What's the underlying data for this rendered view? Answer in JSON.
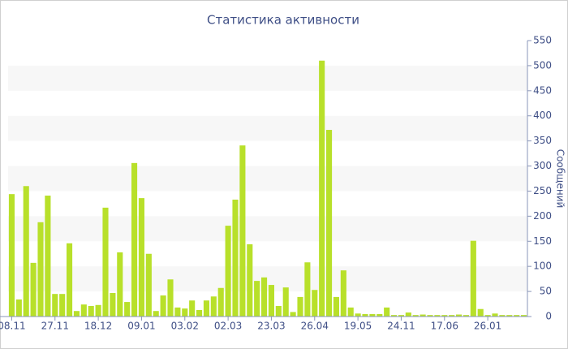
{
  "chart_data": {
    "type": "bar",
    "title": "Статистика активности",
    "y_label": "Сообщений",
    "categories": [
      "08.11",
      null,
      null,
      null,
      null,
      null,
      "27.11",
      null,
      null,
      null,
      null,
      null,
      "18.12",
      null,
      null,
      null,
      null,
      null,
      "09.01",
      null,
      null,
      null,
      null,
      null,
      "03.02",
      null,
      null,
      null,
      null,
      null,
      "02.03",
      null,
      null,
      null,
      null,
      null,
      "23.03",
      null,
      null,
      null,
      null,
      null,
      "26.04",
      null,
      null,
      null,
      null,
      null,
      "19.05",
      null,
      null,
      null,
      null,
      null,
      "24.11",
      null,
      null,
      null,
      null,
      null,
      "17.06",
      null,
      null,
      null,
      null,
      null,
      "26.01",
      null,
      null,
      null,
      null,
      null
    ],
    "values": [
      244,
      34,
      260,
      107,
      188,
      241,
      45,
      45,
      146,
      11,
      24,
      21,
      23,
      217,
      47,
      128,
      29,
      306,
      236,
      125,
      11,
      42,
      74,
      18,
      16,
      32,
      13,
      32,
      40,
      57,
      181,
      233,
      341,
      144,
      71,
      78,
      63,
      21,
      58,
      9,
      39,
      108,
      53,
      510,
      372,
      39,
      92,
      18,
      6,
      5,
      5,
      5,
      18,
      3,
      3,
      8,
      3,
      4,
      3,
      3,
      3,
      3,
      4,
      3,
      151,
      15,
      3,
      6,
      3,
      3,
      3,
      3
    ],
    "color": "#b8e02a",
    "ylim": [
      0,
      550
    ],
    "yticks": [
      0,
      50,
      100,
      150,
      200,
      250,
      300,
      350,
      400,
      450,
      500,
      550
    ],
    "grid": true
  }
}
